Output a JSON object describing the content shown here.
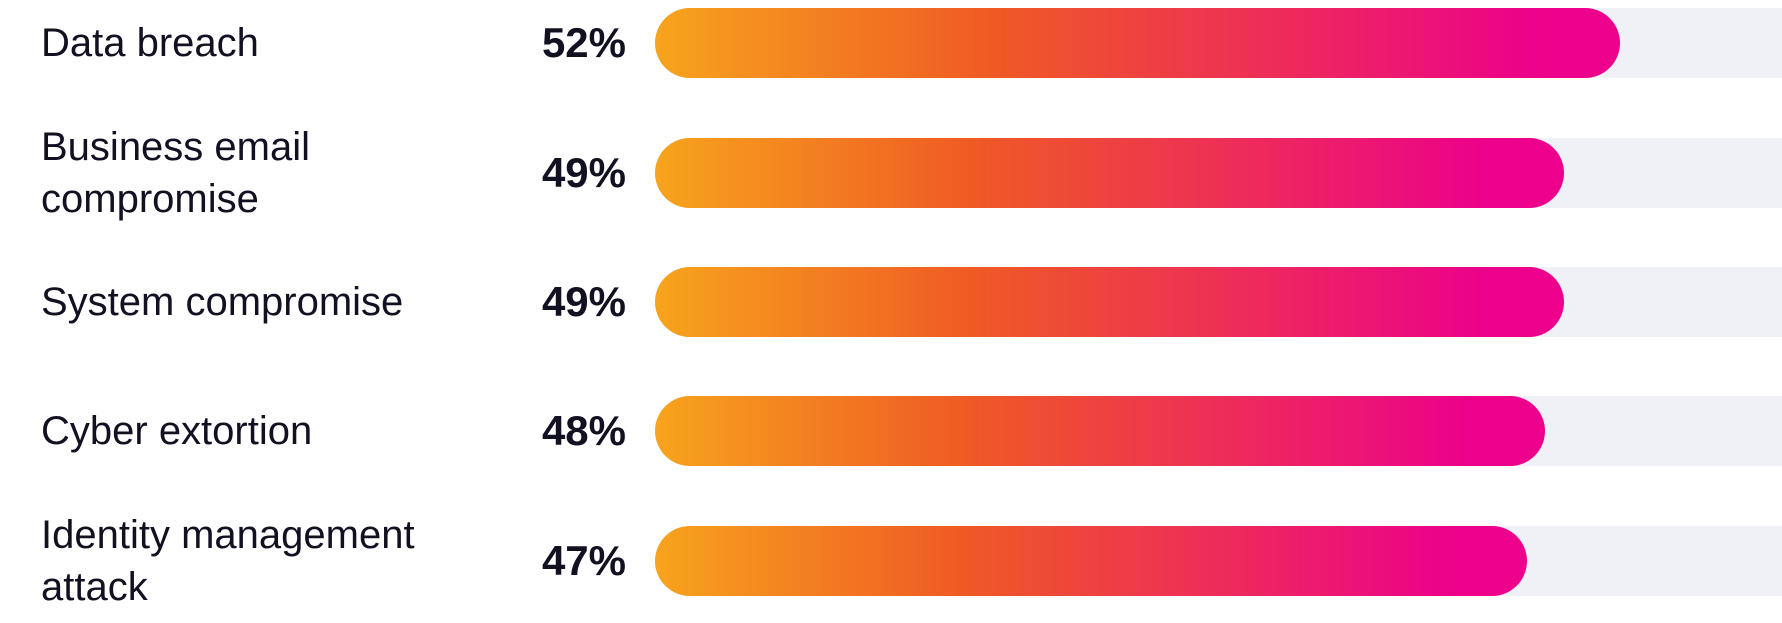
{
  "chart_data": {
    "type": "bar",
    "orientation": "horizontal",
    "categories": [
      "Data breach",
      "Business email compromise",
      "System compromise",
      "Cyber extortion",
      "Identity management attack"
    ],
    "values": [
      52,
      49,
      49,
      48,
      47
    ],
    "value_labels": [
      "52%",
      "49%",
      "49%",
      "48%",
      "47%"
    ],
    "unit": "%",
    "xlim": [
      0,
      66
    ],
    "grid": false,
    "legend": "none",
    "title": "",
    "xlabel": "",
    "ylabel": ""
  },
  "colors": {
    "gradient_start": "#f7a41d",
    "gradient_mid": "#ef5a24",
    "gradient_end": "#ec008c",
    "track": "#eff1f6",
    "text": "#111122"
  }
}
